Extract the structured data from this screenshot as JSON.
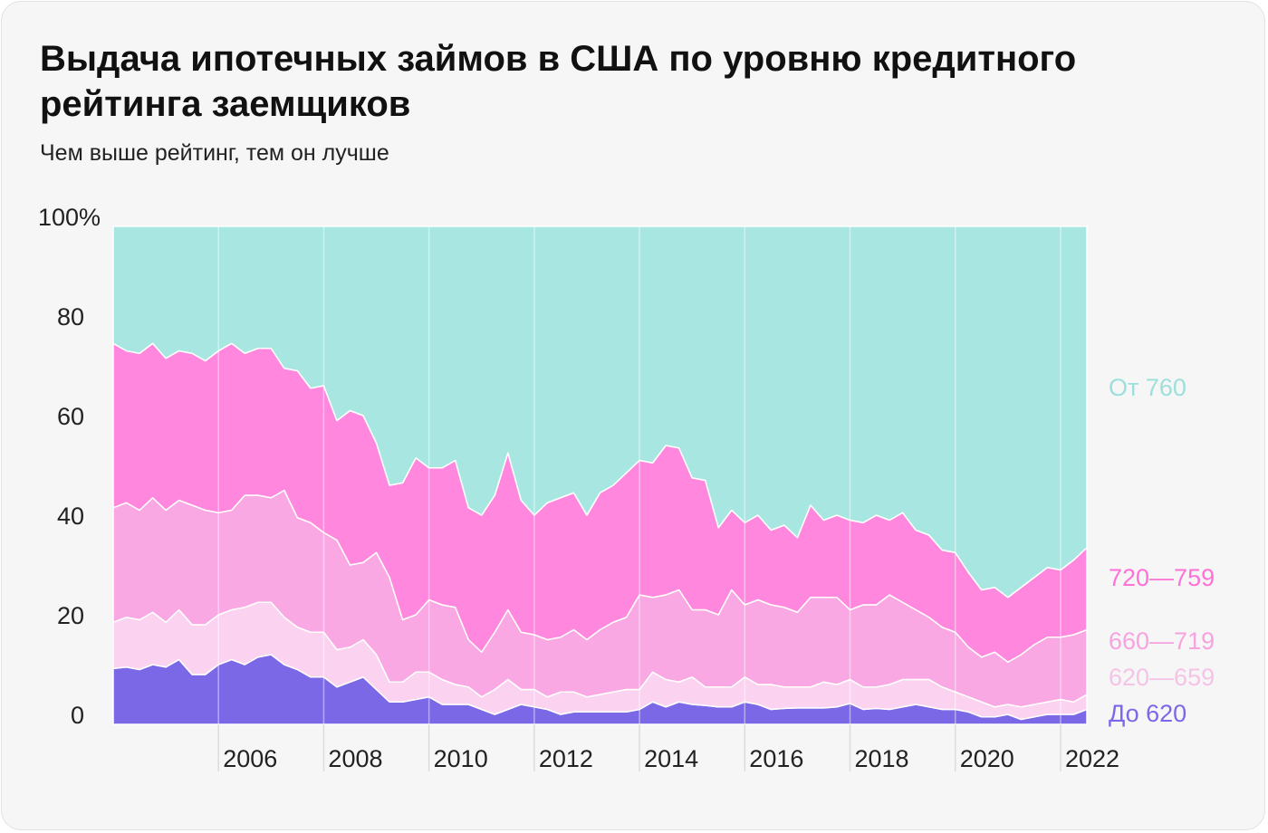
{
  "chart_data": {
    "type": "stacked-area",
    "title": "Выдача ипотечных займов в США по уровню кредитного рейтинга заемщиков",
    "subtitle": "Чем выше рейтинг, тем он лучше",
    "xlim": [
      2004,
      2022.5
    ],
    "xticks": [
      2006,
      2008,
      2010,
      2012,
      2014,
      2016,
      2018,
      2020,
      2022
    ],
    "ylim": [
      0,
      100
    ],
    "yticks": [
      0,
      20,
      40,
      60,
      80,
      {
        "value": 100,
        "label": "100%"
      }
    ],
    "x": [
      2004,
      2004.25,
      2004.5,
      2004.75,
      2005,
      2005.25,
      2005.5,
      2005.75,
      2006,
      2006.25,
      2006.5,
      2006.75,
      2007,
      2007.25,
      2007.5,
      2007.75,
      2008,
      2008.25,
      2008.5,
      2008.75,
      2009,
      2009.25,
      2009.5,
      2009.75,
      2010,
      2010.25,
      2010.5,
      2010.75,
      2011,
      2011.25,
      2011.5,
      2011.75,
      2012,
      2012.25,
      2012.5,
      2012.75,
      2013,
      2013.25,
      2013.5,
      2013.75,
      2014,
      2014.25,
      2014.5,
      2014.75,
      2015,
      2015.25,
      2015.5,
      2015.75,
      2016,
      2016.25,
      2016.5,
      2016.75,
      2017,
      2017.25,
      2017.5,
      2017.75,
      2018,
      2018.25,
      2018.5,
      2018.75,
      2019,
      2019.25,
      2019.5,
      2019.75,
      2020,
      2020.25,
      2020.5,
      2020.75,
      2021,
      2021.25,
      2021.5,
      2021.75,
      2022,
      2022.25,
      2022.5
    ],
    "series": [
      {
        "name": "До 620",
        "color": "#7b68e6",
        "values": [
          11.2,
          11.5,
          11,
          12,
          11.5,
          13,
          10,
          10,
          12,
          13,
          12,
          13.5,
          14,
          12,
          11,
          9.5,
          9.5,
          7.5,
          8.5,
          9.5,
          7,
          4.5,
          4.5,
          5,
          5.5,
          4,
          4,
          4,
          3,
          2,
          3,
          4,
          3.5,
          3,
          2,
          2.5,
          2.5,
          2.5,
          2.5,
          2.5,
          3,
          4.5,
          3.5,
          4.5,
          4,
          3.8,
          3.5,
          3.5,
          4.5,
          4,
          3,
          3.2,
          3.3,
          3.3,
          3.3,
          3.5,
          4.2,
          3,
          3.2,
          3,
          3.5,
          4,
          3.5,
          3,
          3,
          2.5,
          1.5,
          1.5,
          2,
          1,
          1.5,
          2,
          2,
          2,
          3
        ]
      },
      {
        "name": "620—659",
        "color": "#fbd3f0",
        "values": [
          9.3,
          10,
          10,
          10.5,
          9,
          10,
          10,
          10,
          10,
          10,
          11.5,
          11,
          10.5,
          9.5,
          8.5,
          9,
          9,
          7.5,
          7,
          7.5,
          7,
          4,
          4,
          5.5,
          5,
          5,
          4,
          3.5,
          2.5,
          5,
          6,
          3,
          3.5,
          2.5,
          4.5,
          4,
          3,
          3.5,
          4,
          4.5,
          4,
          6,
          5.5,
          4,
          5.5,
          3.7,
          4,
          4,
          5,
          4,
          5,
          4.3,
          4.2,
          4.2,
          5.2,
          4.5,
          4.8,
          4.5,
          4.3,
          5,
          5.5,
          5,
          5.5,
          4.5,
          3.5,
          3,
          3,
          2,
          2,
          2.5,
          2.5,
          2.5,
          3,
          2.5,
          3
        ]
      },
      {
        "name": "660—719",
        "color": "#f9a8e3",
        "values": [
          23,
          23,
          22,
          23,
          22.5,
          22,
          24,
          23,
          20.5,
          20,
          22.5,
          21.5,
          21,
          25.5,
          22,
          22,
          20,
          22,
          16.5,
          15.5,
          20.5,
          21,
          12.5,
          11.5,
          14.5,
          15,
          15.5,
          9.5,
          9,
          11.5,
          14,
          11.5,
          11,
          11.5,
          11,
          12.5,
          11.5,
          13,
          14,
          14.5,
          19,
          15,
          17,
          18.5,
          13.5,
          15.5,
          14.5,
          19.5,
          14.5,
          17,
          16,
          16,
          15,
          18,
          17,
          17.5,
          14,
          16.5,
          16.5,
          18,
          15.5,
          14,
          12.5,
          12,
          12,
          10,
          9,
          11,
          8.5,
          10.5,
          12,
          13,
          12.5,
          13.5,
          13
        ]
      },
      {
        "name": "720—759",
        "color": "#ff88de",
        "values": [
          33,
          30.5,
          31.5,
          31,
          30.5,
          30,
          30.5,
          30,
          32.5,
          33.5,
          28.5,
          29.5,
          30,
          24.5,
          29.5,
          27,
          29.5,
          24,
          31,
          29.5,
          22,
          18.5,
          27.5,
          31.5,
          26.5,
          27.5,
          29.5,
          26.5,
          27.5,
          27.5,
          31.5,
          26.5,
          24,
          27.5,
          28,
          27.5,
          25,
          27.5,
          27.5,
          29,
          27,
          27,
          30,
          28.5,
          26.5,
          26,
          17.5,
          16,
          16.5,
          17,
          15,
          16.5,
          15,
          18.5,
          15.5,
          16.5,
          18,
          16.5,
          18,
          15,
          18,
          16,
          16.5,
          15.5,
          16,
          15,
          13.5,
          13,
          13,
          13.5,
          13.5,
          14,
          13.5,
          15,
          16.5
        ]
      },
      {
        "name": "От 760",
        "color": "#a8e6e2",
        "values": [
          23.5,
          25,
          25.5,
          23.5,
          26.5,
          25,
          25.5,
          27,
          25,
          23.5,
          25.5,
          24.5,
          24.5,
          28.5,
          29,
          32.5,
          32,
          39,
          37,
          38,
          43.5,
          52,
          51.5,
          46.5,
          48.5,
          48.5,
          47,
          56.5,
          58,
          54,
          45.5,
          55,
          58,
          55.5,
          54.5,
          53.5,
          58,
          53.5,
          52,
          49.5,
          47,
          47.5,
          44,
          44.5,
          50.5,
          51,
          60.5,
          57,
          59.5,
          58,
          61,
          60,
          62.5,
          56,
          59,
          58,
          59,
          59.5,
          58,
          59,
          57.5,
          61,
          62,
          65,
          65.5,
          69.5,
          73,
          72.5,
          74.5,
          72.5,
          70.5,
          68.5,
          69,
          67,
          64.5
        ]
      }
    ]
  }
}
